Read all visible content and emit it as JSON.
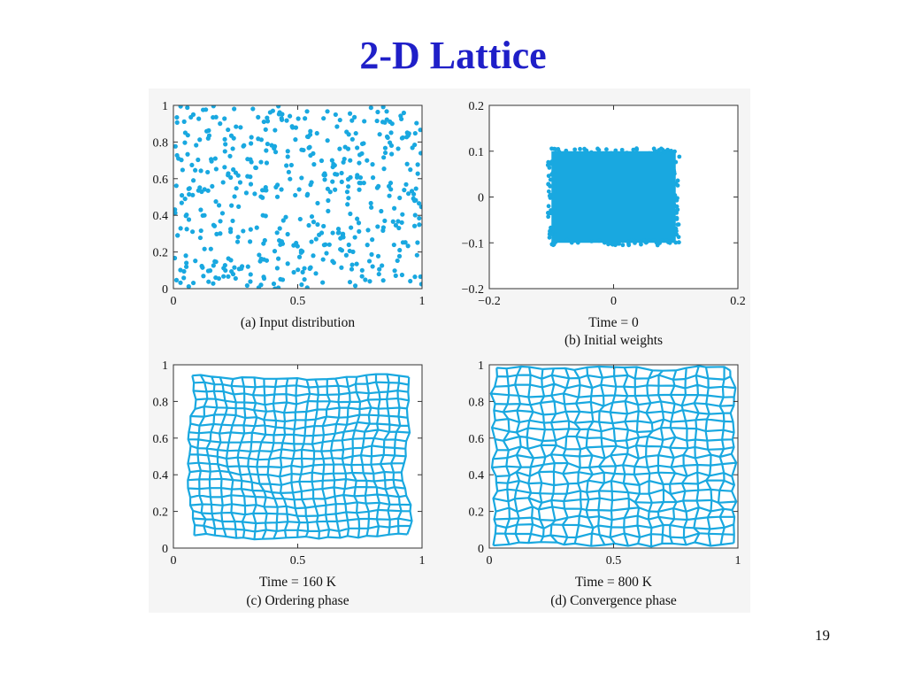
{
  "slide": {
    "title": "2-D Lattice",
    "page_number": "19"
  },
  "colors": {
    "title": "#1f1fc8",
    "data": "#19a8e0",
    "axes": "#333333",
    "panel_background": "#f5f5f5"
  },
  "chart_data": [
    {
      "id": "a",
      "type": "scatter",
      "title": "",
      "caption_lines": [
        "(a) Input distribution"
      ],
      "xlim": [
        0,
        1
      ],
      "ylim": [
        0,
        1
      ],
      "x_ticks": [
        "0",
        "0.5",
        "1"
      ],
      "y_ticks": [
        "0",
        "0.2",
        "0.4",
        "0.6",
        "0.8",
        "1"
      ],
      "grid": false,
      "description": "about 500 points drawn uniformly over the unit square",
      "points": [
        [
          0.02,
          0.71
        ],
        [
          0.05,
          0.18
        ],
        [
          0.08,
          0.95
        ],
        [
          0.11,
          0.43
        ],
        [
          0.14,
          0.82
        ],
        [
          0.17,
          0.06
        ],
        [
          0.2,
          0.58
        ],
        [
          0.23,
          0.31
        ],
        [
          0.27,
          0.88
        ],
        [
          0.3,
          0.12
        ],
        [
          0.33,
          0.66
        ],
        [
          0.36,
          0.4
        ],
        [
          0.4,
          0.97
        ],
        [
          0.43,
          0.24
        ],
        [
          0.46,
          0.75
        ],
        [
          0.49,
          0.51
        ],
        [
          0.52,
          0.09
        ],
        [
          0.55,
          0.84
        ],
        [
          0.58,
          0.35
        ],
        [
          0.61,
          0.62
        ],
        [
          0.64,
          0.15
        ],
        [
          0.67,
          0.92
        ],
        [
          0.7,
          0.46
        ],
        [
          0.73,
          0.28
        ],
        [
          0.76,
          0.79
        ],
        [
          0.79,
          0.04
        ],
        [
          0.82,
          0.55
        ],
        [
          0.85,
          0.37
        ],
        [
          0.88,
          0.9
        ],
        [
          0.91,
          0.21
        ],
        [
          0.94,
          0.68
        ],
        [
          0.97,
          0.48
        ]
      ]
    },
    {
      "id": "b",
      "type": "scatter",
      "title": "",
      "caption_lines": [
        "Time = 0",
        "(b) Initial weights"
      ],
      "xlim": [
        -0.2,
        0.2
      ],
      "ylim": [
        -0.2,
        0.2
      ],
      "x_ticks": [
        "−0.2",
        "0",
        "0.2"
      ],
      "y_ticks": [
        "−0.2",
        "−0.1",
        "0",
        "0.1",
        "0.2"
      ],
      "grid": false,
      "description": "random initial weights filling the square from -0.1 to 0.1 in x and y",
      "region": {
        "x": [
          -0.1,
          0.1
        ],
        "y": [
          -0.1,
          0.1
        ]
      }
    },
    {
      "id": "c",
      "type": "lattice",
      "title": "",
      "caption_lines": [
        "Time = 160 K",
        "(c) Ordering phase"
      ],
      "xlim": [
        0,
        1
      ],
      "ylim": [
        0,
        1
      ],
      "x_ticks": [
        "0",
        "0.5",
        "1"
      ],
      "y_ticks": [
        "0",
        "0.2",
        "0.4",
        "0.6",
        "0.8",
        "1"
      ],
      "grid": false,
      "description": "ordered 2-D weight lattice, wavy but regular",
      "lattice": {
        "rows": 21,
        "cols": 22,
        "x_range": [
          0.07,
          0.94
        ],
        "y_range": [
          0.06,
          0.93
        ],
        "noise": 0.007
      }
    },
    {
      "id": "d",
      "type": "lattice",
      "title": "",
      "caption_lines": [
        "Time = 800 K",
        "(d) Convergence phase"
      ],
      "xlim": [
        0,
        1
      ],
      "ylim": [
        0,
        1
      ],
      "x_ticks": [
        "0",
        "0.5",
        "1"
      ],
      "y_ticks": [
        "0",
        "0.2",
        "0.4",
        "0.6",
        "0.8",
        "1"
      ],
      "grid": false,
      "description": "converged weight lattice covering the unit square",
      "lattice": {
        "rows": 21,
        "cols": 21,
        "x_range": [
          0.02,
          0.98
        ],
        "y_range": [
          0.02,
          0.98
        ],
        "noise": 0.014
      }
    }
  ]
}
